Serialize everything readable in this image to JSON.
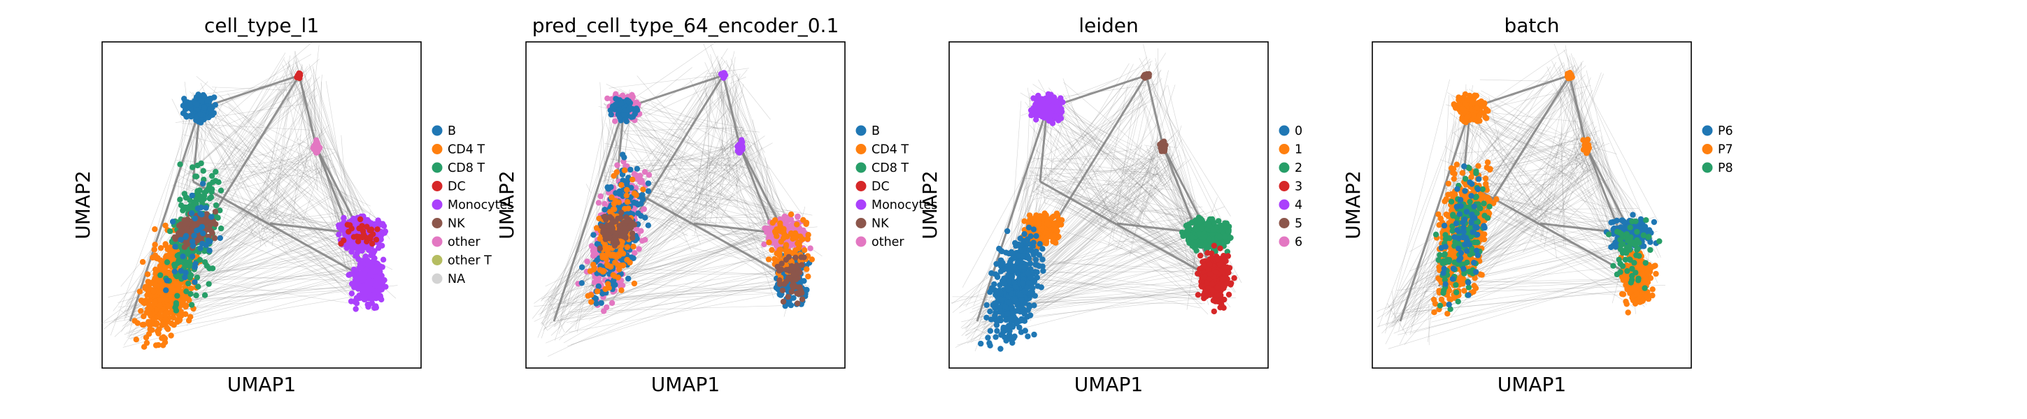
{
  "chart_data": [
    {
      "type": "scatter",
      "title": "cell_type_l1",
      "xlabel": "UMAP1",
      "ylabel": "UMAP2",
      "legend": "right",
      "grid": false,
      "series": [
        {
          "name": "B",
          "color": "#1f77b4"
        },
        {
          "name": "CD4 T",
          "color": "#ff7f0e"
        },
        {
          "name": "CD8 T",
          "color": "#279e68"
        },
        {
          "name": "DC",
          "color": "#d62728"
        },
        {
          "name": "Monocytes",
          "color": "#aa40fc"
        },
        {
          "name": "NK",
          "color": "#8c564b"
        },
        {
          "name": "other",
          "color": "#e377c2"
        },
        {
          "name": "other T",
          "color": "#b5bd61"
        },
        {
          "name": "NA",
          "color": "#d3d3d3"
        }
      ]
    },
    {
      "type": "scatter",
      "title": "pred_cell_type_64_encoder_0.1",
      "xlabel": "UMAP1",
      "ylabel": "UMAP2",
      "legend": "right",
      "grid": false,
      "series": [
        {
          "name": "B",
          "color": "#1f77b4"
        },
        {
          "name": "CD4 T",
          "color": "#ff7f0e"
        },
        {
          "name": "CD8 T",
          "color": "#279e68"
        },
        {
          "name": "DC",
          "color": "#d62728"
        },
        {
          "name": "Monocytes",
          "color": "#aa40fc"
        },
        {
          "name": "NK",
          "color": "#8c564b"
        },
        {
          "name": "other",
          "color": "#e377c2"
        }
      ]
    },
    {
      "type": "scatter",
      "title": "leiden",
      "xlabel": "UMAP1",
      "ylabel": "UMAP2",
      "legend": "right",
      "grid": false,
      "series": [
        {
          "name": "0",
          "color": "#1f77b4"
        },
        {
          "name": "1",
          "color": "#ff7f0e"
        },
        {
          "name": "2",
          "color": "#279e68"
        },
        {
          "name": "3",
          "color": "#d62728"
        },
        {
          "name": "4",
          "color": "#aa40fc"
        },
        {
          "name": "5",
          "color": "#8c564b"
        },
        {
          "name": "6",
          "color": "#e377c2"
        }
      ]
    },
    {
      "type": "scatter",
      "title": "batch",
      "xlabel": "UMAP1",
      "ylabel": "UMAP2",
      "legend": "right",
      "grid": false,
      "series": [
        {
          "name": "P6",
          "color": "#1f77b4"
        },
        {
          "name": "P7",
          "color": "#ff7f0e"
        },
        {
          "name": "P8",
          "color": "#279e68"
        }
      ]
    }
  ]
}
